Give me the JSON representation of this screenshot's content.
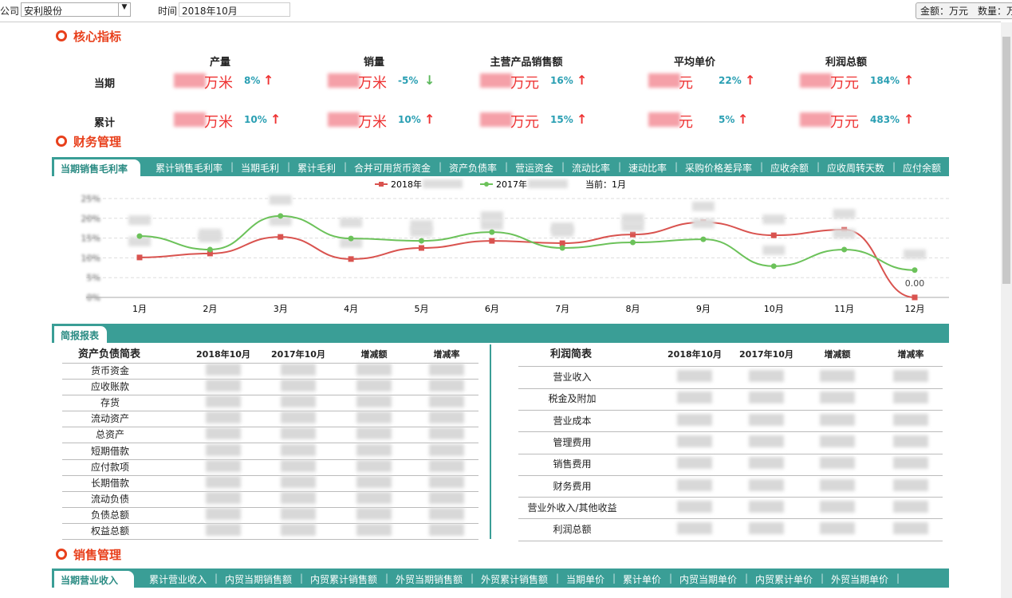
{
  "header": {
    "company_label": "公司",
    "company": "安利股份",
    "time_label": "时间",
    "time": "2018年10月",
    "units": "金额：万元　数量：万"
  },
  "core": {
    "title": "核心指标",
    "columns": [
      "产量",
      "销量",
      "主营产品销售额",
      "平均单价",
      "利润总额"
    ],
    "units": [
      "万米",
      "万米",
      "万元",
      "元",
      "万元"
    ],
    "rows": [
      {
        "label": "当期",
        "changes": [
          "8%",
          "-5%",
          "16%",
          "22%",
          "184%"
        ]
      },
      {
        "label": "累计",
        "changes": [
          "10%",
          "10%",
          "15%",
          "5%",
          "483%"
        ]
      }
    ]
  },
  "finance": {
    "title": "财务管理",
    "tabs": [
      "当期销售毛利率",
      "累计销售毛利率",
      "当期毛利",
      "累计毛利",
      "合并可用货币资金",
      "资产负债率",
      "营运资金",
      "流动比率",
      "速动比率",
      "采购价格差异率",
      "应收余额",
      "应收周转天数",
      "应付余额"
    ],
    "current": "当前：1月"
  },
  "chart_data": {
    "type": "line",
    "categories": [
      "1月",
      "2月",
      "3月",
      "4月",
      "5月",
      "6月",
      "7月",
      "8月",
      "9月",
      "10月",
      "11月",
      "12月"
    ],
    "series": [
      {
        "name": "2018年",
        "color": "#d9534f",
        "marker": "square",
        "values": [
          10.1,
          11.1,
          15.3,
          9.7,
          12.5,
          14.3,
          13.7,
          15.9,
          19.0,
          15.7,
          17.1,
          0
        ],
        "value_labels": [
          null,
          null,
          null,
          null,
          null,
          null,
          null,
          null,
          null,
          null,
          null,
          "0.00"
        ]
      },
      {
        "name": "2017年",
        "color": "#6cc25a",
        "marker": "circle",
        "values": [
          15.5,
          12.1,
          20.6,
          14.9,
          14.3,
          16.5,
          12.5,
          13.9,
          14.7,
          7.9,
          12.1,
          6.9
        ]
      }
    ],
    "ylim": [
      0,
      25
    ],
    "yticks": [
      {
        "value": 0,
        "label": "0%"
      },
      {
        "value": 5,
        "label": "5%"
      },
      {
        "value": 10,
        "label": "10%"
      },
      {
        "value": 15,
        "label": "15%"
      },
      {
        "value": 20,
        "label": "20%"
      },
      {
        "value": 25,
        "label": "25%"
      }
    ],
    "grid": true
  },
  "brief": {
    "tab": "简报报表",
    "balance": {
      "title": "资产负债简表",
      "headers": [
        "2018年10月",
        "2017年10月",
        "增减额",
        "增减率"
      ],
      "rows": [
        "货币资金",
        "应收账款",
        "存货",
        "流动资产",
        "总资产",
        "短期借款",
        "应付款项",
        "长期借款",
        "流动负债",
        "负债总额",
        "权益总额"
      ]
    },
    "profit": {
      "title": "利润简表",
      "headers": [
        "2018年10月",
        "2017年10月",
        "增减额",
        "增减率"
      ],
      "rows": [
        "营业收入",
        "税金及附加",
        "营业成本",
        "管理费用",
        "销售费用",
        "财务费用",
        "营业外收入/其他收益",
        "利润总额"
      ]
    }
  },
  "sales": {
    "title": "销售管理",
    "tabs": [
      "当期营业收入",
      "累计营业收入",
      "内贸当期销售额",
      "内贸累计销售额",
      "外贸当期销售额",
      "外贸累计销售额",
      "当期单价",
      "累计单价",
      "内贸当期单价",
      "内贸累计单价",
      "外贸当期单价"
    ]
  }
}
